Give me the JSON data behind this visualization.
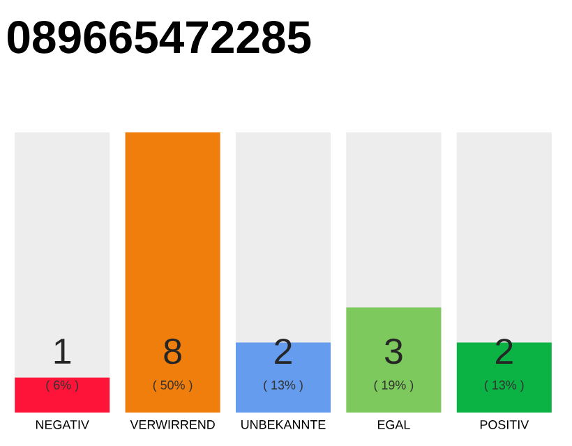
{
  "chart_data": {
    "type": "bar",
    "title": "089665472285",
    "categories": [
      "NEGATIV",
      "VERWIRREND",
      "UNBEKANNTE",
      "EGAL",
      "POSITIV"
    ],
    "values": [
      1,
      8,
      2,
      3,
      2
    ],
    "colors": [
      "#ff1439",
      "#f07e0d",
      "#659ced",
      "#7dc95d",
      "#0bb244"
    ],
    "data_labels": true,
    "annotations": [
      "( 6% )",
      "( 50% )",
      "( 13% )",
      "( 19% )",
      "( 13% )"
    ]
  }
}
